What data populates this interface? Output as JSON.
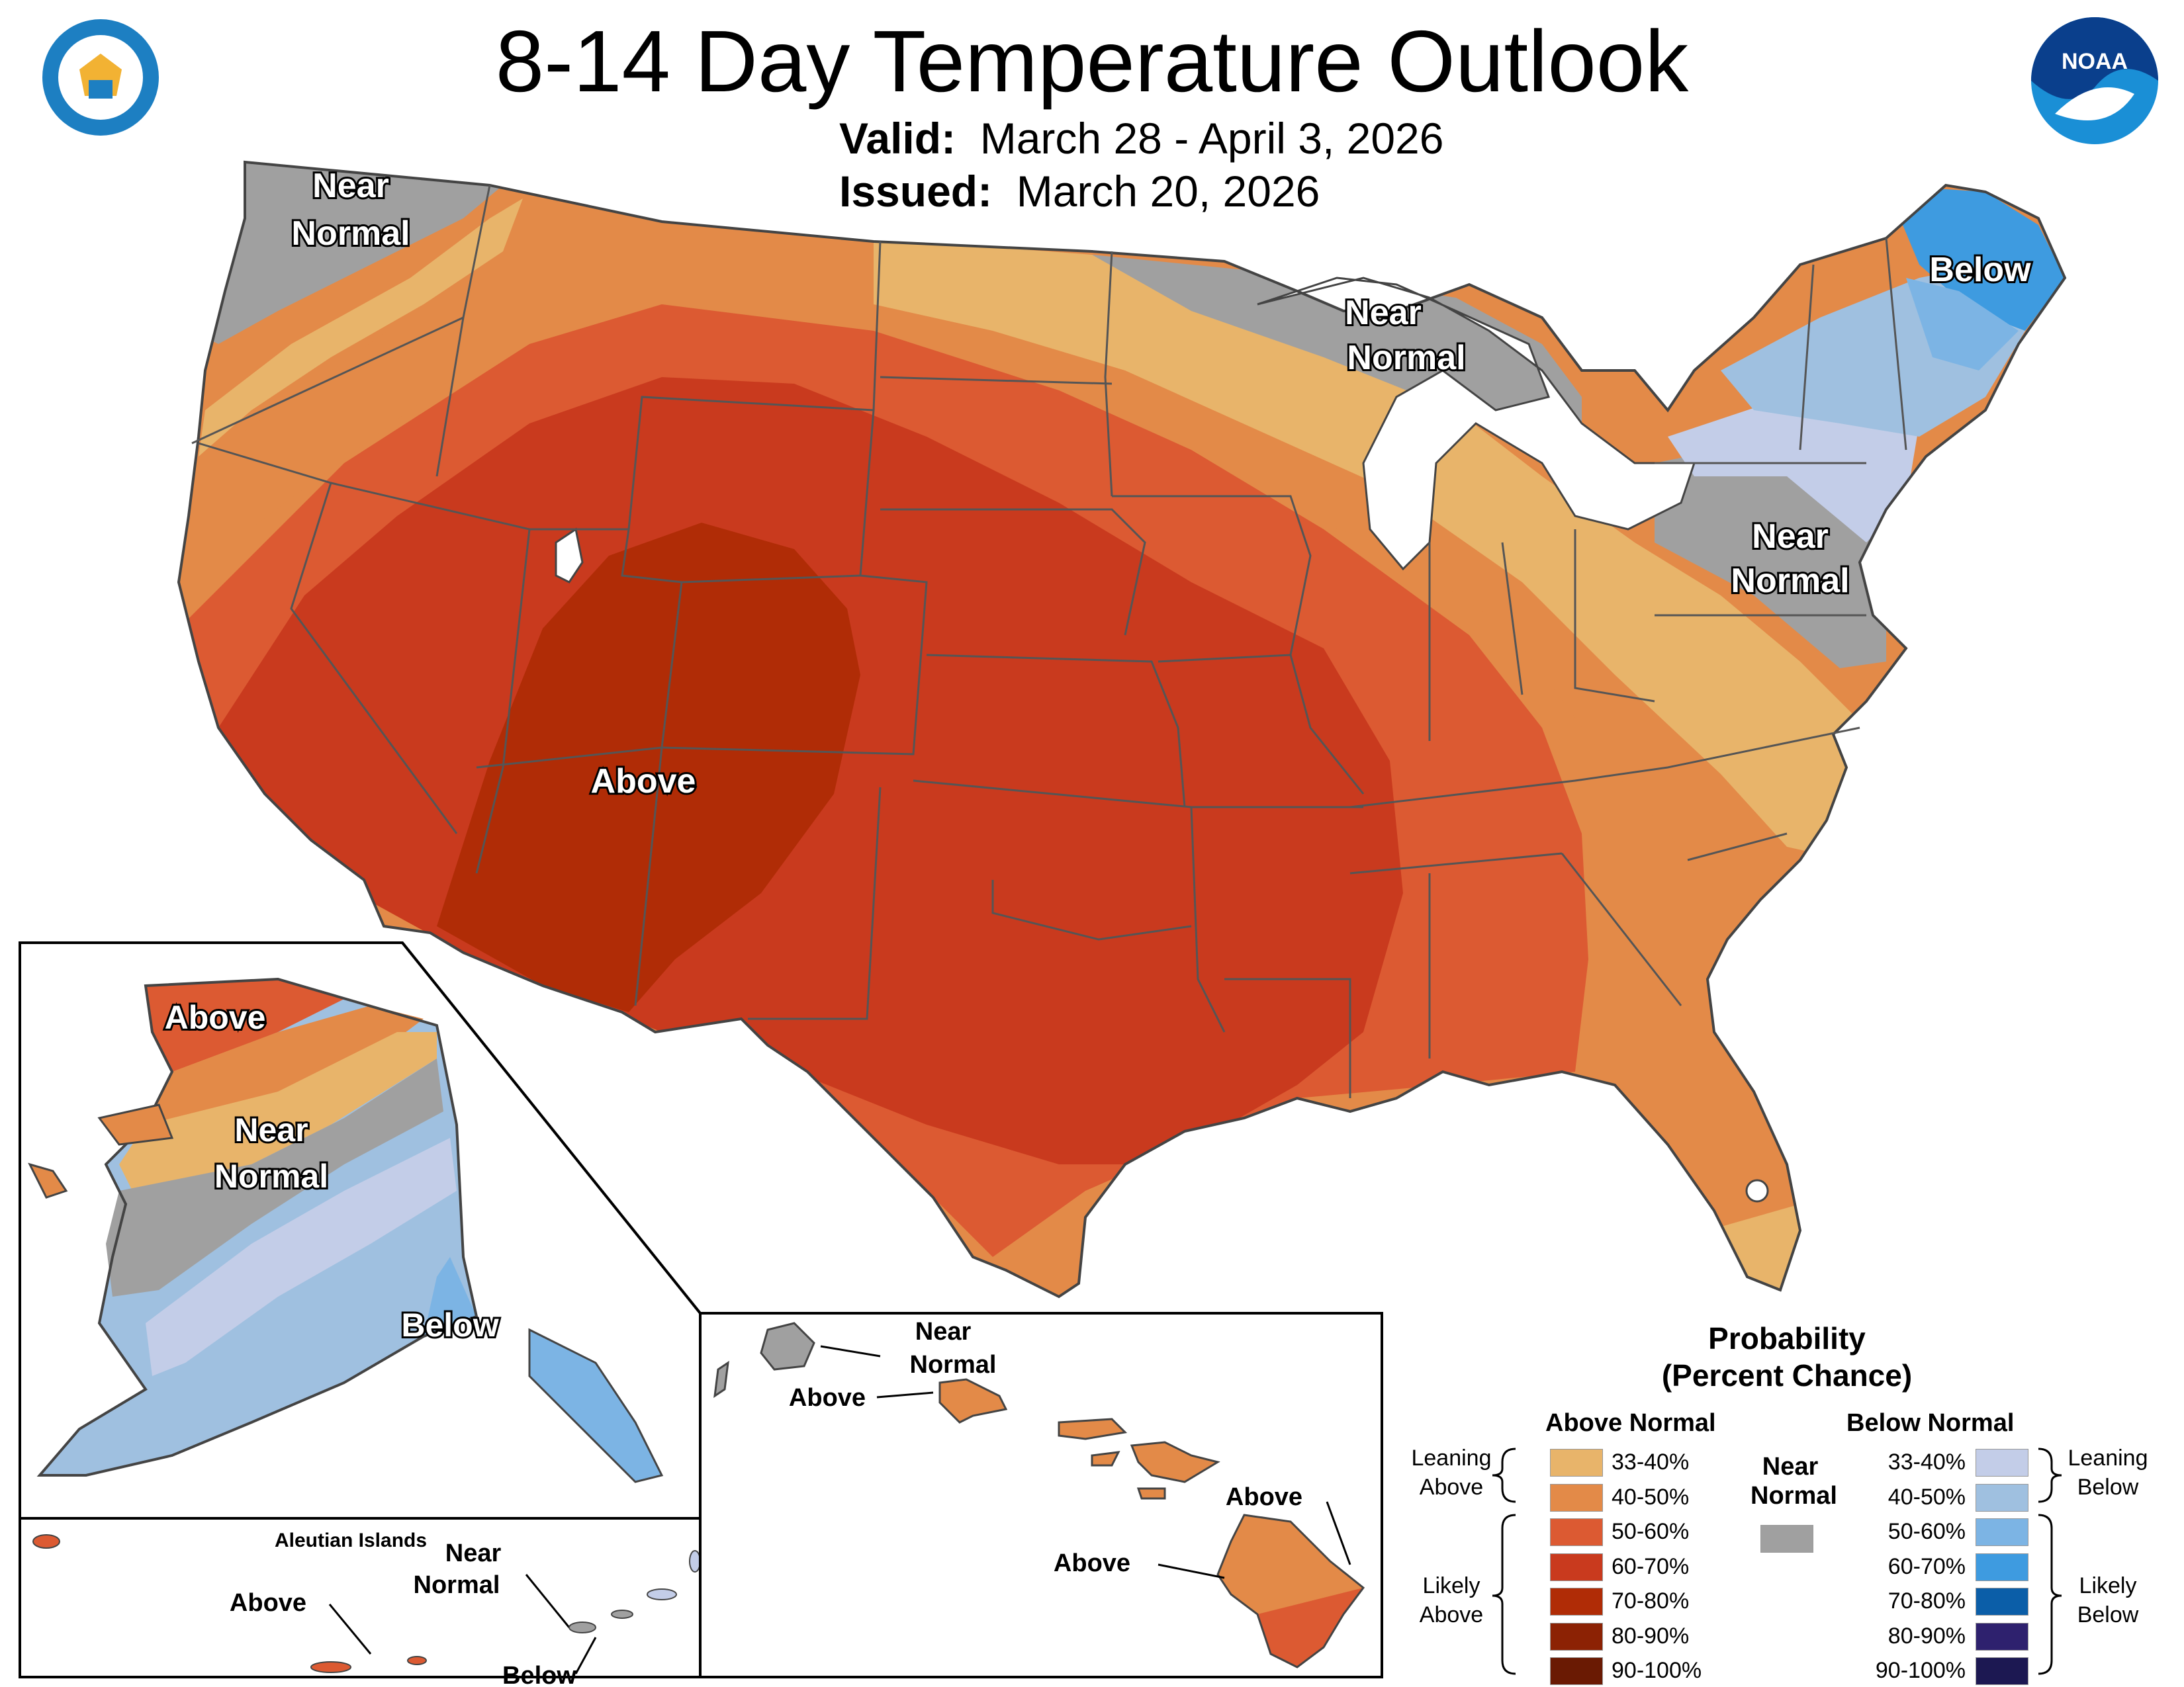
{
  "title": "8-14 Day Temperature Outlook",
  "valid": {
    "label": "Valid:",
    "value": "March 28 - April 3, 2026"
  },
  "issued": {
    "label": "Issued:",
    "value": "March 20, 2026"
  },
  "logos": {
    "left": "Department of Commerce seal",
    "right": "NOAA logo"
  },
  "regions": {
    "nw": [
      "Near",
      "Normal"
    ],
    "greatlakes": [
      "Near",
      "Normal"
    ],
    "northeast": "Below",
    "midatlantic": [
      "Near",
      "Normal"
    ],
    "southwest": "Above"
  },
  "alaska": {
    "above": "Above",
    "near": [
      "Near",
      "Normal"
    ],
    "below": "Below"
  },
  "aleutians": {
    "title": "Aleutian Islands",
    "above": "Above",
    "near": [
      "Near",
      "Normal"
    ],
    "below": "Below"
  },
  "hawaii": {
    "near": [
      "Near",
      "Normal"
    ],
    "above_oahu": "Above",
    "above_bigisland_n": "Above",
    "above_bigisland_w": "Above"
  },
  "legend": {
    "title": [
      "Probability",
      "(Percent Chance)"
    ],
    "above_header": "Above Normal",
    "below_header": "Below Normal",
    "near_header": [
      "Near",
      "Normal"
    ],
    "leaning_above": [
      "Leaning",
      "Above"
    ],
    "likely_above": [
      "Likely",
      "Above"
    ],
    "leaning_below": [
      "Leaning",
      "Below"
    ],
    "likely_below": [
      "Likely",
      "Below"
    ],
    "ranges": [
      "33-40%",
      "40-50%",
      "50-60%",
      "60-70%",
      "70-80%",
      "80-90%",
      "90-100%"
    ],
    "above_colors": [
      "#e8b46a",
      "#e38a48",
      "#dc5a32",
      "#c93a1e",
      "#b02c06",
      "#8c2204",
      "#6a1a03"
    ],
    "below_colors": [
      "#c3cde8",
      "#9fc0e0",
      "#7cb4e4",
      "#3e9be0",
      "#0b5ea8",
      "#2e216e",
      "#1c1852"
    ],
    "near_color": "#a0a0a0"
  }
}
